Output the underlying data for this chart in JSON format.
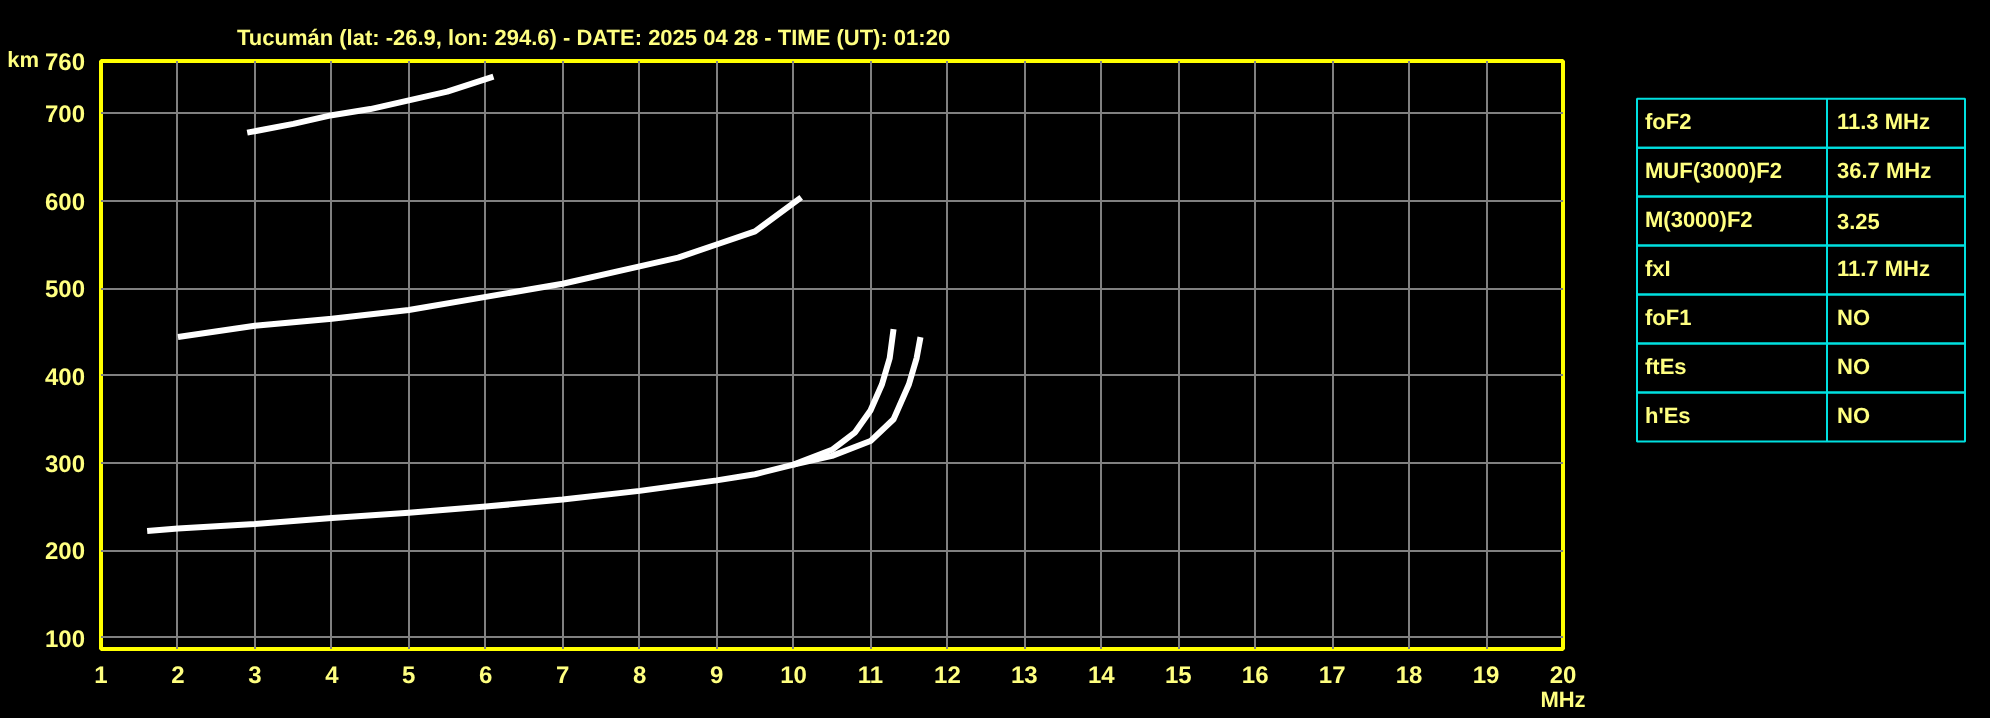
{
  "chart_data": [
    {
      "type": "line",
      "title": "Tucumán (lat: -26.9, lon: 294.6) - DATE: 2025 04 28 - TIME (UT): 01:20",
      "xlabel": "MHz",
      "ylabel": "km",
      "xlim": [
        1,
        20
      ],
      "ylim": [
        87,
        760
      ],
      "xticks": [
        1,
        2,
        3,
        4,
        5,
        6,
        7,
        8,
        9,
        10,
        11,
        12,
        13,
        14,
        15,
        16,
        17,
        18,
        19,
        20
      ],
      "yticks": [
        100,
        200,
        300,
        400,
        500,
        600,
        700,
        760
      ],
      "grid": true,
      "line_style": "solid",
      "series": [
        {
          "color": "#ffffff",
          "x": [
            1.6,
            2,
            3,
            4,
            5,
            6,
            7,
            8,
            9,
            9.5,
            10,
            10.5,
            10.8,
            11.0,
            11.15,
            11.25,
            11.3
          ],
          "values": [
            222,
            225,
            230,
            237,
            243,
            250,
            258,
            268,
            280,
            287,
            298,
            315,
            335,
            360,
            390,
            420,
            453
          ]
        },
        {
          "color": "#ffffff",
          "x": [
            10,
            10.5,
            11,
            11.3,
            11.5,
            11.6,
            11.65
          ],
          "values": [
            298,
            308,
            325,
            350,
            390,
            420,
            444
          ]
        },
        {
          "color": "#ffffff",
          "x": [
            2,
            3,
            4,
            5,
            6,
            7,
            8,
            8.5,
            9,
            9.5,
            10.1
          ],
          "values": [
            444,
            457,
            465,
            475,
            490,
            505,
            525,
            535,
            550,
            565,
            604
          ]
        },
        {
          "color": "#ffffff",
          "x": [
            2.9,
            3.5,
            4,
            4.5,
            5,
            5.5,
            6.1
          ],
          "values": [
            678,
            688,
            698,
            705,
            715,
            725,
            742
          ]
        }
      ]
    },
    {
      "type": "other",
      "categories": [
        "foF2",
        "MUF(3000)F2",
        "M(3000)F2",
        "fxI",
        "foF1",
        "ftEs",
        "h'Es"
      ],
      "value_labels": [
        "11.3 MHz",
        "36.7 MHz",
        "3.25",
        "11.7 MHz",
        "NO",
        "NO",
        "NO"
      ]
    }
  ]
}
